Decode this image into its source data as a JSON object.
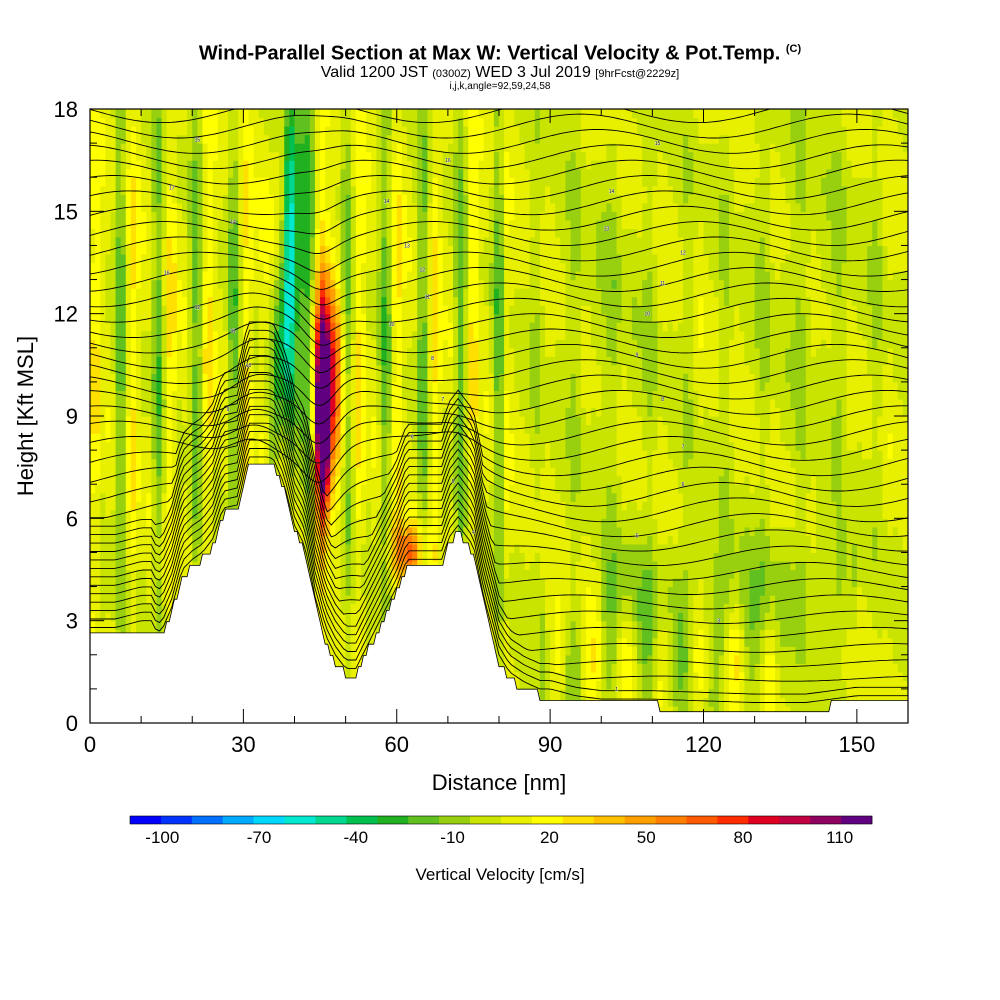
{
  "header": {
    "title": "Wind-Parallel Section at Max W: Vertical Velocity & Pot.Temp.",
    "copyright": "(C)",
    "valid_prefix": "Valid 1200 JST",
    "valid_utc": "(0300Z)",
    "valid_date": "WED 3 Jul 2019",
    "forecast": "[9hrFcst@2229z]",
    "indices": "i,j,k,angle=92,59,24,58"
  },
  "chart_data": {
    "type": "heatmap",
    "xlabel": "Distance [nm]",
    "ylabel": "Height [Kft MSL]",
    "xlim": [
      0,
      160
    ],
    "ylim": [
      0,
      18
    ],
    "xticks": [
      "0",
      "30",
      "60",
      "90",
      "120",
      "150"
    ],
    "yticks": [
      "0",
      "3",
      "6",
      "9",
      "12",
      "15",
      "18"
    ],
    "grid": false,
    "colorbar": {
      "title": "Vertical Velocity [cm/s]",
      "labels": [
        "-100",
        "-70",
        "-40",
        "-10",
        "20",
        "50",
        "80",
        "110"
      ],
      "label_values": [
        -100,
        -70,
        -40,
        -10,
        20,
        50,
        80,
        110
      ],
      "range": [
        -110,
        120
      ],
      "colors": [
        "#0000ff",
        "#0033ff",
        "#0070ff",
        "#00aaff",
        "#00d8ff",
        "#00e8d0",
        "#00d890",
        "#00c050",
        "#20b020",
        "#60c020",
        "#98d010",
        "#c8e400",
        "#e8f000",
        "#ffff00",
        "#ffe000",
        "#ffc000",
        "#ffa000",
        "#ff8000",
        "#ff5a00",
        "#ff2c00",
        "#e00020",
        "#c00040",
        "#900060",
        "#600080"
      ]
    },
    "terrain": [
      [
        0,
        2.6
      ],
      [
        5,
        2.6
      ],
      [
        10,
        2.8
      ],
      [
        12,
        2.8
      ],
      [
        13,
        2.5
      ],
      [
        14,
        2.5
      ],
      [
        16,
        3.2
      ],
      [
        18,
        4.3
      ],
      [
        20,
        4.6
      ],
      [
        22,
        4.8
      ],
      [
        24,
        5.2
      ],
      [
        26,
        6.1
      ],
      [
        29,
        6.2
      ],
      [
        30,
        7.0
      ],
      [
        31,
        7.6
      ],
      [
        35,
        7.6
      ],
      [
        36,
        7.5
      ],
      [
        38,
        6.8
      ],
      [
        40,
        5.6
      ],
      [
        42,
        5.0
      ],
      [
        43,
        4.3
      ],
      [
        44,
        3.5
      ],
      [
        45,
        3.0
      ],
      [
        46,
        2.4
      ],
      [
        48,
        1.8
      ],
      [
        50,
        1.4
      ],
      [
        52,
        1.4
      ],
      [
        54,
        2.0
      ],
      [
        56,
        2.6
      ],
      [
        58,
        3.2
      ],
      [
        60,
        3.8
      ],
      [
        62,
        4.6
      ],
      [
        65,
        4.6
      ],
      [
        68,
        4.6
      ],
      [
        69,
        4.6
      ],
      [
        70,
        5.2
      ],
      [
        72,
        5.6
      ],
      [
        75,
        5.0
      ],
      [
        77,
        3.5
      ],
      [
        79,
        2.4
      ],
      [
        80,
        1.8
      ],
      [
        82,
        1.3
      ],
      [
        85,
        1.0
      ],
      [
        88,
        0.8
      ],
      [
        90,
        0.8
      ],
      [
        95,
        0.6
      ],
      [
        100,
        0.5
      ],
      [
        110,
        0.5
      ],
      [
        120,
        0.45
      ],
      [
        130,
        0.4
      ],
      [
        135,
        0.4
      ],
      [
        140,
        0.4
      ],
      [
        145,
        0.5
      ],
      [
        150,
        0.6
      ],
      [
        155,
        0.6
      ],
      [
        160,
        0.6
      ]
    ],
    "isentrope_labels": [
      {
        "x": 21,
        "y": 17.1,
        "text": "15"
      },
      {
        "x": 16,
        "y": 15.7,
        "text": "17"
      },
      {
        "x": 28,
        "y": 14.7,
        "text": "14"
      },
      {
        "x": 15,
        "y": 13.2,
        "text": "16"
      },
      {
        "x": 21,
        "y": 12.2,
        "text": "12"
      },
      {
        "x": 28,
        "y": 11.5,
        "text": "11"
      },
      {
        "x": 31,
        "y": 10.5,
        "text": "10"
      },
      {
        "x": 27,
        "y": 9.2,
        "text": "9"
      },
      {
        "x": 58,
        "y": 15.3,
        "text": "14"
      },
      {
        "x": 70,
        "y": 16.5,
        "text": "16"
      },
      {
        "x": 62,
        "y": 14.0,
        "text": "13"
      },
      {
        "x": 65,
        "y": 13.3,
        "text": "12"
      },
      {
        "x": 66,
        "y": 12.5,
        "text": "11"
      },
      {
        "x": 59,
        "y": 11.7,
        "text": "10"
      },
      {
        "x": 67,
        "y": 10.7,
        "text": "8"
      },
      {
        "x": 69,
        "y": 9.5,
        "text": "7"
      },
      {
        "x": 63,
        "y": 8.4,
        "text": "6"
      },
      {
        "x": 71,
        "y": 7.1,
        "text": "5"
      },
      {
        "x": 75,
        "y": 5.6,
        "text": "4"
      },
      {
        "x": 111,
        "y": 17.0,
        "text": "15"
      },
      {
        "x": 102,
        "y": 15.6,
        "text": "14"
      },
      {
        "x": 101,
        "y": 14.5,
        "text": "13"
      },
      {
        "x": 116,
        "y": 13.8,
        "text": "12"
      },
      {
        "x": 112,
        "y": 12.9,
        "text": "11"
      },
      {
        "x": 109,
        "y": 12.0,
        "text": "10"
      },
      {
        "x": 107,
        "y": 10.8,
        "text": "9"
      },
      {
        "x": 112,
        "y": 9.5,
        "text": "8"
      },
      {
        "x": 116,
        "y": 8.1,
        "text": "7"
      },
      {
        "x": 116,
        "y": 7.0,
        "text": "6"
      },
      {
        "x": 107,
        "y": 5.5,
        "text": "5"
      },
      {
        "x": 123,
        "y": 3.0,
        "text": "3"
      },
      {
        "x": 103,
        "y": 1.0,
        "text": "1"
      }
    ]
  }
}
